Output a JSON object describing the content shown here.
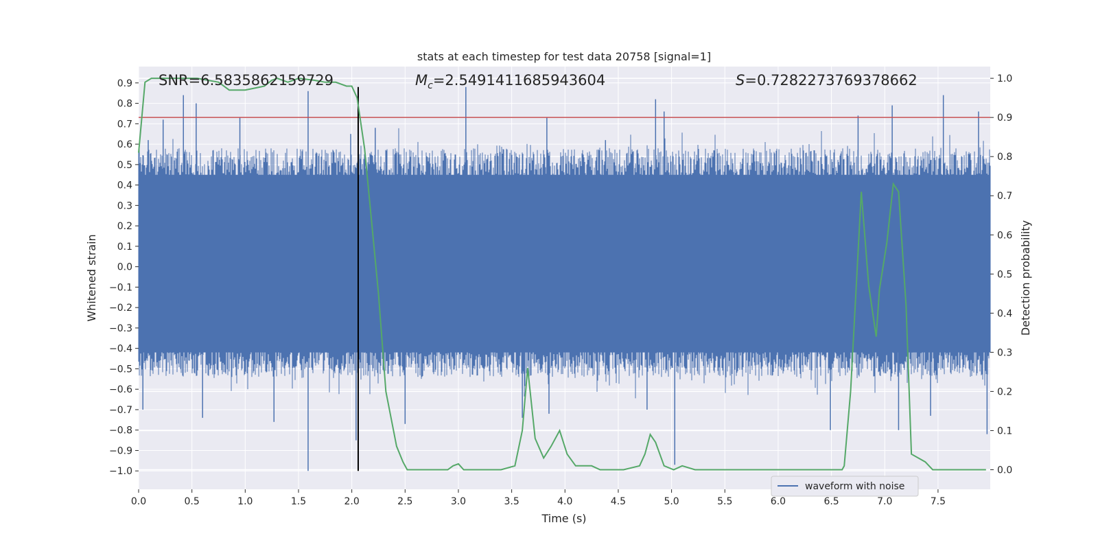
{
  "chart_data": {
    "type": "line",
    "title": "stats at each timestep for test data 20758 [signal=1]",
    "xlabel": "Time (s)",
    "ylabel": "Whitened strain",
    "y2label": "Detection probability",
    "xlim": [
      0.0,
      7.99
    ],
    "ylim": [
      -1.09,
      0.98
    ],
    "y2lim": [
      -0.05,
      1.03
    ],
    "xticks": [
      "0.0",
      "0.5",
      "1.0",
      "1.5",
      "2.0",
      "2.5",
      "3.0",
      "3.5",
      "4.0",
      "4.5",
      "5.0",
      "5.5",
      "6.0",
      "6.5",
      "7.0",
      "7.5"
    ],
    "yticks": [
      "0.9",
      "0.8",
      "0.7",
      "0.6",
      "0.5",
      "0.4",
      "0.3",
      "0.2",
      "0.1",
      "0.0",
      "−0.1",
      "−0.2",
      "−0.3",
      "−0.4",
      "−0.5",
      "−0.6",
      "−0.7",
      "−0.8",
      "−0.9",
      "−1.0"
    ],
    "y2ticks": [
      "1.0",
      "0.9",
      "0.8",
      "0.7",
      "0.6",
      "0.5",
      "0.4",
      "0.3",
      "0.2",
      "0.1",
      "0.0"
    ],
    "annotations": {
      "snr": "SNR=6.5835862159729",
      "mc_symbol": "M",
      "mc_sub": "c",
      "mc_value": "=2.5491411685943604",
      "s_symbol": "S",
      "s_value": "=0.7282273769378662"
    },
    "threshold_line": {
      "value": 0.9,
      "axis": "y2",
      "color": "#c44e52"
    },
    "event_marker": {
      "x": 2.06,
      "y_range": [
        -1.0,
        0.88
      ],
      "color": "#000000"
    },
    "legend": {
      "label": "waveform with noise",
      "location": "lower-right"
    },
    "series": [
      {
        "name": "waveform with noise",
        "axis": "y",
        "color": "#4c72b0",
        "style": "noise band",
        "envelope_upper_approx": 0.55,
        "envelope_lower_approx": -0.5,
        "peaks": [
          {
            "x": 0.09,
            "y": 0.62
          },
          {
            "x": 0.23,
            "y": 0.72
          },
          {
            "x": 0.42,
            "y": 0.84
          },
          {
            "x": 0.54,
            "y": 0.8
          },
          {
            "x": 0.95,
            "y": 0.73
          },
          {
            "x": 1.59,
            "y": 0.86
          },
          {
            "x": 1.99,
            "y": 0.65
          },
          {
            "x": 2.22,
            "y": 0.68
          },
          {
            "x": 3.07,
            "y": 0.88
          },
          {
            "x": 3.83,
            "y": 0.73
          },
          {
            "x": 4.38,
            "y": 0.62
          },
          {
            "x": 4.85,
            "y": 0.82
          },
          {
            "x": 4.93,
            "y": 0.76
          },
          {
            "x": 6.75,
            "y": 0.74
          },
          {
            "x": 7.07,
            "y": 0.79
          },
          {
            "x": 7.55,
            "y": 0.84
          },
          {
            "x": 7.88,
            "y": 0.76
          }
        ],
        "troughs": [
          {
            "x": 0.04,
            "y": -0.7
          },
          {
            "x": 0.6,
            "y": -0.74
          },
          {
            "x": 1.27,
            "y": -0.76
          },
          {
            "x": 1.59,
            "y": -1.0
          },
          {
            "x": 2.04,
            "y": -0.85
          },
          {
            "x": 2.5,
            "y": -0.77
          },
          {
            "x": 3.6,
            "y": -0.74
          },
          {
            "x": 3.85,
            "y": -0.72
          },
          {
            "x": 4.77,
            "y": -0.7
          },
          {
            "x": 5.03,
            "y": -0.97
          },
          {
            "x": 6.49,
            "y": -0.8
          },
          {
            "x": 7.13,
            "y": -0.8
          },
          {
            "x": 7.43,
            "y": -0.73
          },
          {
            "x": 7.96,
            "y": -0.82
          }
        ]
      },
      {
        "name": "Detection probability",
        "axis": "y2",
        "color": "#55a868",
        "x": [
          0.0,
          0.06,
          0.12,
          0.2,
          0.35,
          0.55,
          0.75,
          0.85,
          1.0,
          1.18,
          1.25,
          1.3,
          1.4,
          1.5,
          1.65,
          1.75,
          1.85,
          1.95,
          2.0,
          2.05,
          2.12,
          2.18,
          2.25,
          2.32,
          2.42,
          2.48,
          2.52,
          2.6,
          2.7,
          2.8,
          2.9,
          2.95,
          3.0,
          3.05,
          3.1,
          3.2,
          3.4,
          3.53,
          3.6,
          3.65,
          3.72,
          3.8,
          3.87,
          3.95,
          4.02,
          4.1,
          4.18,
          4.25,
          4.33,
          4.42,
          4.55,
          4.7,
          4.75,
          4.8,
          4.85,
          4.93,
          5.02,
          5.1,
          5.22,
          5.5,
          6.2,
          6.5,
          6.6,
          6.62,
          6.68,
          6.78,
          6.85,
          6.92,
          6.95,
          7.02,
          7.08,
          7.13,
          7.2,
          7.25,
          7.38,
          7.45,
          7.55,
          7.7,
          7.8,
          7.95
        ],
        "y": [
          0.81,
          0.99,
          1.0,
          1.0,
          1.0,
          1.0,
          0.99,
          0.97,
          0.97,
          0.98,
          0.995,
          1.0,
          0.99,
          1.0,
          0.995,
          0.99,
          0.99,
          0.98,
          0.98,
          0.95,
          0.82,
          0.65,
          0.45,
          0.2,
          0.06,
          0.02,
          0.0,
          0.0,
          0.0,
          0.0,
          0.0,
          0.01,
          0.015,
          0.0,
          0.0,
          0.0,
          0.0,
          0.01,
          0.1,
          0.26,
          0.08,
          0.03,
          0.06,
          0.1,
          0.04,
          0.01,
          0.01,
          0.01,
          0.0,
          0.0,
          0.0,
          0.01,
          0.04,
          0.09,
          0.07,
          0.01,
          0.0,
          0.01,
          0.0,
          0.0,
          0.0,
          0.0,
          0.0,
          0.01,
          0.2,
          0.71,
          0.47,
          0.34,
          0.46,
          0.58,
          0.73,
          0.71,
          0.42,
          0.04,
          0.02,
          0.0,
          0.0,
          0.0,
          0.0,
          0.0
        ]
      }
    ]
  }
}
